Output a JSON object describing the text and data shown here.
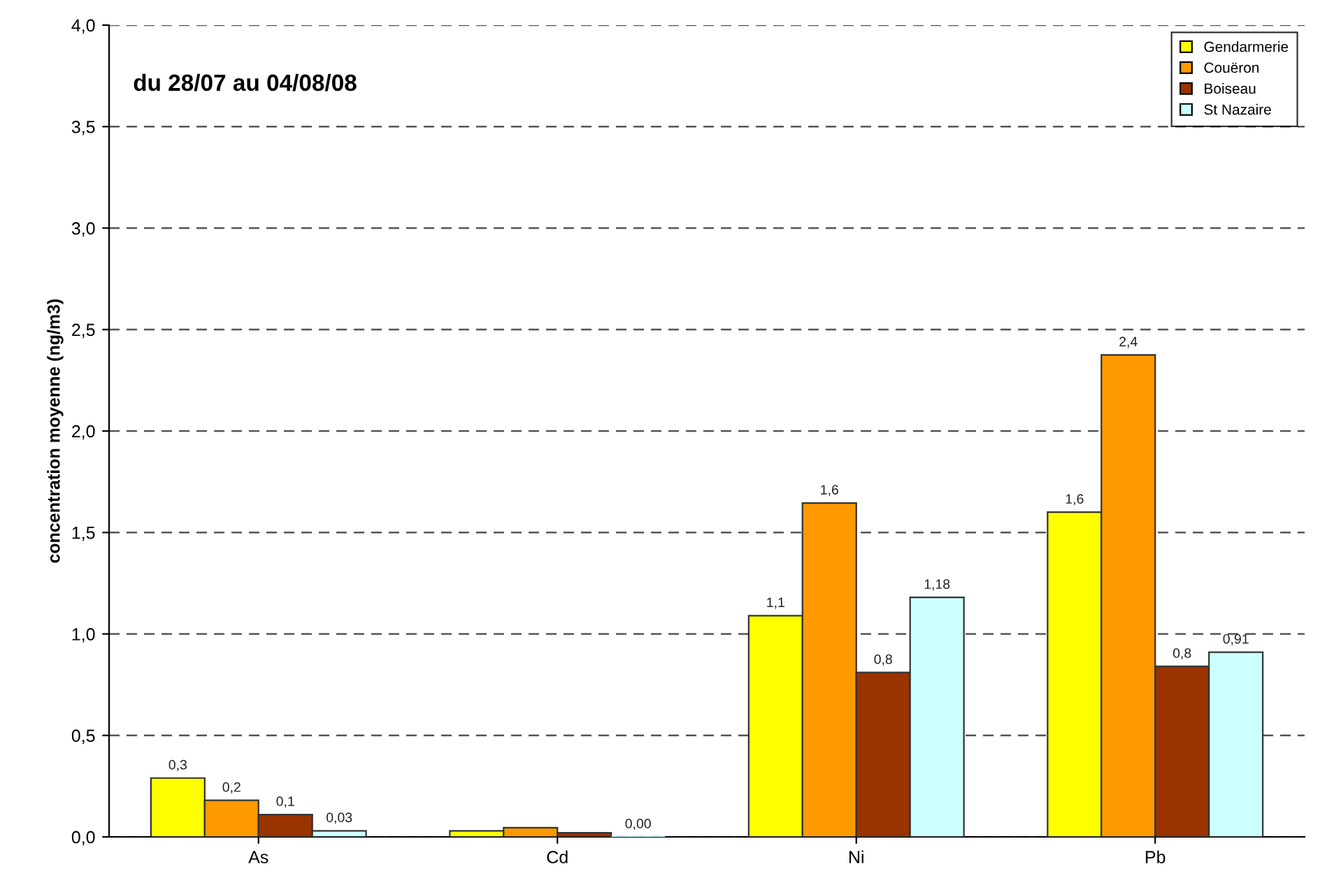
{
  "chart_data": {
    "type": "bar",
    "title": "du 28/07 au 04/08/08",
    "ylabel": "concentration moyenne (ng/m3)",
    "categories": [
      "As",
      "Cd",
      "Ni",
      "Pb"
    ],
    "series": [
      {
        "name": "Gendarmerie",
        "color": "#ffff00",
        "values": [
          0.29,
          0.03,
          1.09,
          1.6
        ],
        "value_labels": [
          "0,3",
          null,
          "1,1",
          "1,6"
        ]
      },
      {
        "name": "Couëron",
        "color": "#ff9900",
        "values": [
          0.18,
          0.045,
          1.645,
          2.375
        ],
        "value_labels": [
          "0,2",
          null,
          "1,6",
          "2,4"
        ]
      },
      {
        "name": "Boiseau",
        "color": "#993300",
        "values": [
          0.11,
          0.02,
          0.81,
          0.84
        ],
        "value_labels": [
          "0,1",
          null,
          "0,8",
          "0,8"
        ]
      },
      {
        "name": "St Nazaire",
        "color": "#ccffff",
        "values": [
          0.03,
          0.0,
          1.18,
          0.91
        ],
        "value_labels": [
          "0,03",
          "0,00",
          "1,18",
          "0,91"
        ]
      }
    ],
    "ylim": [
      0,
      4
    ],
    "yticks": [
      {
        "value": 0,
        "label": "0,0"
      },
      {
        "value": 0.5,
        "label": "0,5"
      },
      {
        "value": 1,
        "label": "1,0"
      },
      {
        "value": 1.5,
        "label": "1,5"
      },
      {
        "value": 2,
        "label": "2,0"
      },
      {
        "value": 2.5,
        "label": "2,5"
      },
      {
        "value": 3,
        "label": "3,0"
      },
      {
        "value": 3.5,
        "label": "3,5"
      },
      {
        "value": 4,
        "label": "4,0"
      }
    ],
    "grid": "y",
    "legend": "top right"
  }
}
